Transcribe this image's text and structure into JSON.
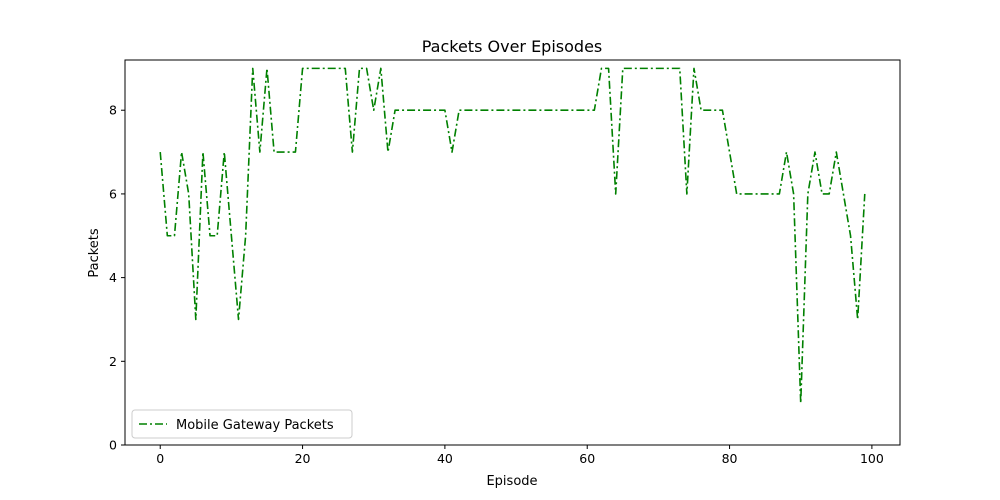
{
  "chart_data": {
    "type": "line",
    "title": "Packets Over Episodes",
    "xlabel": "Episode",
    "ylabel": "Packets",
    "xlim": [
      -4.95,
      103.95
    ],
    "ylim": [
      0,
      9.2
    ],
    "xticks": [
      0,
      20,
      40,
      60,
      80,
      100
    ],
    "yticks": [
      0,
      2,
      4,
      6,
      8
    ],
    "grid": false,
    "legend_position": "lower-left",
    "series": [
      {
        "name": "Mobile Gateway Packets",
        "color": "#008000",
        "line_style": "dash-dot",
        "x": [
          0,
          1,
          2,
          3,
          4,
          5,
          6,
          7,
          8,
          9,
          10,
          11,
          12,
          13,
          14,
          15,
          16,
          17,
          18,
          19,
          20,
          21,
          22,
          23,
          24,
          25,
          26,
          27,
          28,
          29,
          30,
          31,
          32,
          33,
          34,
          35,
          36,
          37,
          38,
          39,
          40,
          41,
          42,
          43,
          44,
          45,
          46,
          47,
          48,
          49,
          50,
          51,
          52,
          53,
          54,
          55,
          56,
          57,
          58,
          59,
          60,
          61,
          62,
          63,
          64,
          65,
          66,
          67,
          68,
          69,
          70,
          71,
          72,
          73,
          74,
          75,
          76,
          77,
          78,
          79,
          80,
          81,
          82,
          83,
          84,
          85,
          86,
          87,
          88,
          89,
          90,
          91,
          92,
          93,
          94,
          95,
          96,
          97,
          98,
          99
        ],
        "values": [
          7,
          5,
          5,
          7,
          6,
          3,
          7,
          5,
          5,
          7,
          5,
          3,
          5,
          9,
          7,
          9,
          7,
          7,
          7,
          7,
          9,
          9,
          9,
          9,
          9,
          9,
          9,
          7,
          9,
          9,
          8,
          9,
          7,
          8,
          8,
          8,
          8,
          8,
          8,
          8,
          8,
          7,
          8,
          8,
          8,
          8,
          8,
          8,
          8,
          8,
          8,
          8,
          8,
          8,
          8,
          8,
          8,
          8,
          8,
          8,
          8,
          8,
          9,
          9,
          6,
          9,
          9,
          9,
          9,
          9,
          9,
          9,
          9,
          9,
          6,
          9,
          8,
          8,
          8,
          8,
          7,
          6,
          6,
          6,
          6,
          6,
          6,
          6,
          7,
          6,
          1,
          6,
          7,
          6,
          6,
          7,
          6,
          5,
          3,
          6
        ]
      }
    ]
  }
}
